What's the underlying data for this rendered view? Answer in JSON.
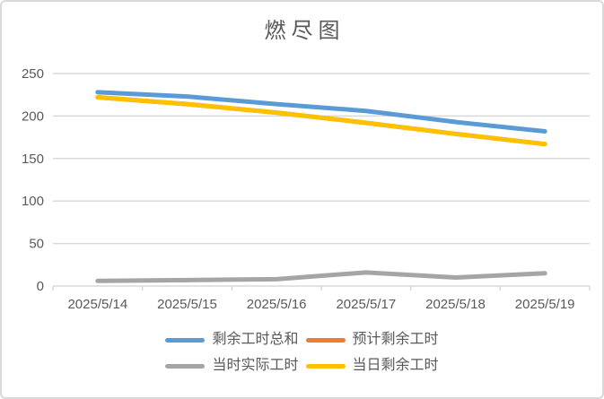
{
  "window": {
    "background": "#ffffff",
    "border_color": "#d9d9d9"
  },
  "chart_data": {
    "type": "line",
    "title": "燃尽图",
    "categories": [
      "2025/5/14",
      "2025/5/15",
      "2025/5/16",
      "2025/5/17",
      "2025/5/18",
      "2025/5/19"
    ],
    "series": [
      {
        "name": "剩余工时总和",
        "color": "#5B9BD5",
        "values": [
          228,
          223,
          214,
          206,
          193,
          182
        ]
      },
      {
        "name": "预计剩余工时",
        "color": "#ED7D31",
        "values": [
          222,
          214,
          204,
          192,
          179,
          167
        ]
      },
      {
        "name": "当时实际工时",
        "color": "#A5A5A5",
        "values": [
          6,
          7,
          8,
          16,
          10,
          15
        ]
      },
      {
        "name": "当日剩余工时",
        "color": "#FFC000",
        "values": [
          222,
          214,
          204,
          192,
          179,
          167
        ]
      }
    ],
    "ylim": [
      0,
      250
    ],
    "yticks": [
      0,
      50,
      100,
      150,
      200,
      250
    ],
    "grid": "horizontal",
    "gridline_color": "#d9d9d9",
    "text_color": "#595959",
    "legend_position": "bottom",
    "legend_rows": [
      [
        "剩余工时总和",
        "预计剩余工时"
      ],
      [
        "当时实际工时",
        "当日剩余工时"
      ]
    ]
  }
}
